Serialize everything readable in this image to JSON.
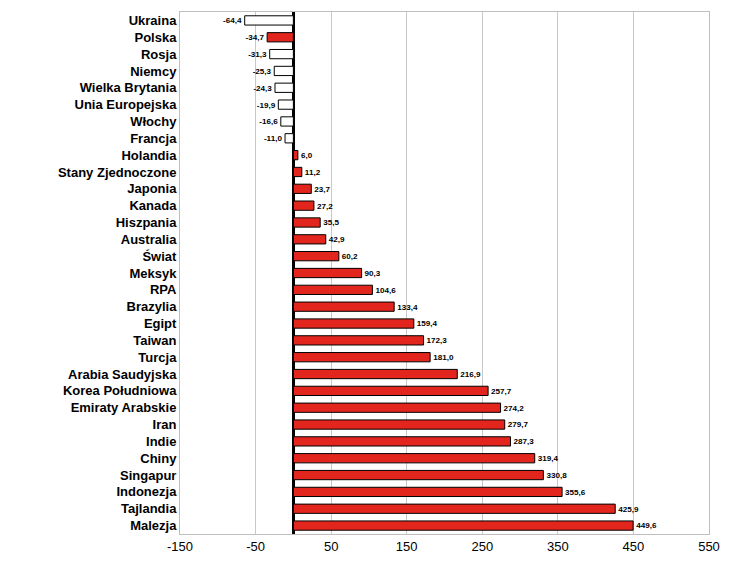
{
  "chart_data": {
    "type": "bar",
    "orientation": "horizontal",
    "categories": [
      "Ukraina",
      "Polska",
      "Rosja",
      "Niemcy",
      "Wielka Brytania",
      "Unia Europejska",
      "Włochy",
      "Francja",
      "Holandia",
      "Stany Zjednoczone",
      "Japonia",
      "Kanada",
      "Hiszpania",
      "Australia",
      "Świat",
      "Meksyk",
      "RPA",
      "Brazylia",
      "Egipt",
      "Taiwan",
      "Turcja",
      "Arabia Saudyjska",
      "Korea Południowa",
      "Emiraty Arabskie",
      "Iran",
      "Indie",
      "Chiny",
      "Singapur",
      "Indonezja",
      "Tajlandia",
      "Malezja"
    ],
    "values": [
      -64.4,
      -34.7,
      -31.3,
      -25.3,
      -24.3,
      -19.9,
      -16.6,
      -11.0,
      6.0,
      11.2,
      23.7,
      27.2,
      35.5,
      42.9,
      60.2,
      90.3,
      104.6,
      133.4,
      159.4,
      172.3,
      181.0,
      216.9,
      257.7,
      274.2,
      279.7,
      287.3,
      319.4,
      330.8,
      355.6,
      425.9,
      449.6
    ],
    "value_labels": [
      "-64,4",
      "-34,7",
      "-31,3",
      "-25,3",
      "-24,3",
      "-19,9",
      "-16,6",
      "-11,0",
      "6,0",
      "11,2",
      "23,7",
      "27,2",
      "35,5",
      "42,9",
      "60,2",
      "90,3",
      "104,6",
      "133,4",
      "159,4",
      "172,3",
      "181,0",
      "216,9",
      "257,7",
      "274,2",
      "279,7",
      "287,3",
      "319,4",
      "330,8",
      "355,6",
      "425,9",
      "449,6"
    ],
    "colors": [
      "#ffffff",
      "#e3261d",
      "#ffffff",
      "#ffffff",
      "#ffffff",
      "#ffffff",
      "#ffffff",
      "#ffffff",
      "#e3261d",
      "#e3261d",
      "#e3261d",
      "#e3261d",
      "#e3261d",
      "#e3261d",
      "#e3261d",
      "#e3261d",
      "#e3261d",
      "#e3261d",
      "#e3261d",
      "#e3261d",
      "#e3261d",
      "#e3261d",
      "#e3261d",
      "#e3261d",
      "#e3261d",
      "#e3261d",
      "#e3261d",
      "#e3261d",
      "#e3261d",
      "#e3261d",
      "#e3261d"
    ],
    "xlim": [
      -150,
      550
    ],
    "xticks": [
      -150,
      -50,
      50,
      150,
      250,
      350,
      450,
      550
    ],
    "grid": true,
    "data_labels": true
  }
}
